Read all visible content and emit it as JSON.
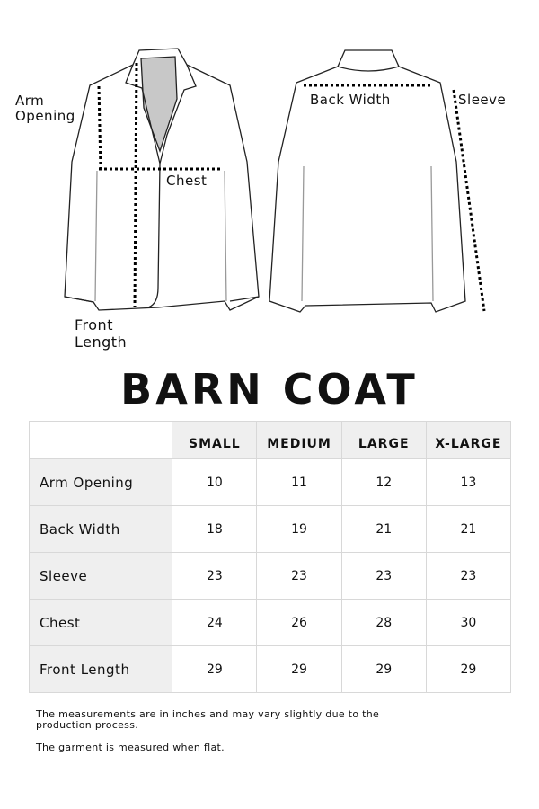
{
  "diagram_labels": {
    "arm_opening": "Arm Opening",
    "chest": "Chest",
    "front_length": "Front Length",
    "back_width": "Back Width",
    "sleeve": "Sleeve"
  },
  "title": "BARN COAT",
  "table": {
    "headers": [
      "",
      "SMALL",
      "MEDIUM",
      "LARGE",
      "X-LARGE"
    ],
    "rows": [
      {
        "label": "Arm Opening",
        "values": [
          "10",
          "11",
          "12",
          "13"
        ]
      },
      {
        "label": "Back Width",
        "values": [
          "18",
          "19",
          "21",
          "21"
        ]
      },
      {
        "label": "Sleeve",
        "values": [
          "23",
          "23",
          "23",
          "23"
        ]
      },
      {
        "label": "Chest",
        "values": [
          "24",
          "26",
          "28",
          "30"
        ]
      },
      {
        "label": "Front Length",
        "values": [
          "29",
          "29",
          "29",
          "29"
        ]
      }
    ]
  },
  "notes": [
    "The measurements are in inches and may vary slightly due to the production process.",
    "The garment is measured when flat."
  ]
}
